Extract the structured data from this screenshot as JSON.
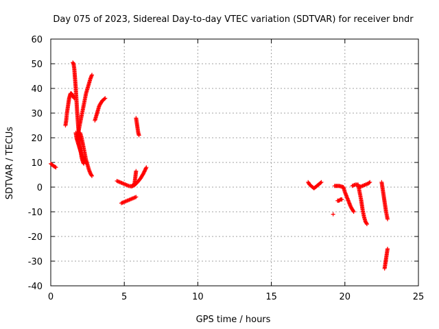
{
  "chart_data": {
    "type": "scatter",
    "title": "Day 075 of 2023, Sidereal Day-to-day VTEC variation (SDTVAR) for receiver bndr",
    "xlabel": "GPS time / hours",
    "ylabel": "SDTVAR / TECUs",
    "xlim": [
      0,
      25
    ],
    "ylim": [
      -40,
      60
    ],
    "xticks": [
      0,
      5,
      10,
      15,
      20,
      25
    ],
    "yticks": [
      -40,
      -30,
      -20,
      -10,
      0,
      10,
      20,
      30,
      40,
      50,
      60
    ],
    "grid": true,
    "legend": "none",
    "marker": "plus",
    "color": "#ff0000",
    "series": [
      {
        "x": [
          0.0,
          0.1,
          0.2,
          0.3,
          0.35
        ],
        "y": [
          9.5,
          9.0,
          8.5,
          8.2,
          8.0
        ]
      },
      {
        "x": [
          1.0,
          1.05,
          1.1,
          1.15,
          1.2,
          1.25,
          1.3,
          1.35,
          1.4,
          1.45,
          1.5,
          1.55,
          1.6
        ],
        "y": [
          25,
          27,
          30,
          32,
          34,
          36,
          37,
          38,
          38,
          37.5,
          37,
          36.5,
          36
        ]
      },
      {
        "x": [
          1.5,
          1.55,
          1.6,
          1.65,
          1.7,
          1.75,
          1.8,
          1.85,
          1.9,
          1.95,
          2.0,
          2.05,
          2.1,
          2.15,
          2.2,
          2.25
        ],
        "y": [
          50.5,
          50,
          48,
          44,
          40,
          35,
          30,
          26,
          22,
          19,
          16,
          14,
          12,
          11,
          10,
          9.5
        ]
      },
      {
        "x": [
          1.7,
          1.75,
          1.8,
          1.85,
          1.9,
          1.95,
          2.0,
          2.05,
          2.1,
          2.15,
          2.2,
          2.25,
          2.3,
          2.35,
          2.4
        ],
        "y": [
          22,
          20,
          19,
          18,
          17,
          16,
          15,
          14,
          13,
          12.5,
          12,
          11.5,
          11,
          10.5,
          10
        ]
      },
      {
        "x": [
          1.8,
          1.9,
          2.0,
          2.1,
          2.2,
          2.3,
          2.4,
          2.5,
          2.6,
          2.7,
          2.8
        ],
        "y": [
          20,
          23,
          26,
          29,
          32,
          35,
          38,
          40,
          42,
          44,
          45.5
        ]
      },
      {
        "x": [
          2.0,
          2.1,
          2.2,
          2.3,
          2.4,
          2.5,
          2.6,
          2.7,
          2.8
        ],
        "y": [
          22,
          20,
          17,
          14,
          11,
          9,
          7,
          5.5,
          4.5
        ]
      },
      {
        "x": [
          3.0,
          3.1,
          3.2,
          3.3,
          3.4,
          3.5,
          3.6,
          3.7
        ],
        "y": [
          27,
          29,
          31,
          33,
          34,
          35,
          35.5,
          36
        ]
      },
      {
        "x": [
          5.8,
          5.85,
          5.9,
          5.95,
          6.0
        ],
        "y": [
          28,
          26,
          24,
          22,
          21
        ]
      },
      {
        "x": [
          4.5,
          4.7,
          4.9,
          5.1,
          5.3,
          5.5,
          5.7,
          5.8
        ],
        "y": [
          2.5,
          2.0,
          1.5,
          1.0,
          0.5,
          0.3,
          1.5,
          6.5
        ]
      },
      {
        "x": [
          5.5,
          5.7,
          5.9,
          6.1,
          6.3,
          6.5
        ],
        "y": [
          0.3,
          0.8,
          2.0,
          3.5,
          5.5,
          8.0
        ]
      },
      {
        "x": [
          4.8,
          5.0,
          5.2,
          5.4,
          5.6,
          5.8
        ],
        "y": [
          -6.5,
          -6.0,
          -5.5,
          -5.0,
          -4.5,
          -4.0
        ]
      },
      {
        "x": [
          17.5,
          17.6,
          17.7,
          17.8,
          17.9,
          18.0,
          18.1,
          18.2,
          18.3,
          18.4
        ],
        "y": [
          2.0,
          1.0,
          0.5,
          0.0,
          -0.5,
          0.0,
          0.5,
          1.0,
          1.5,
          2.0
        ]
      },
      {
        "x": [
          19.2
        ],
        "y": [
          -11
        ]
      },
      {
        "x": [
          19.5,
          19.6,
          19.7,
          19.8
        ],
        "y": [
          -5.5,
          -5.5,
          -5.0,
          -5.0
        ]
      },
      {
        "x": [
          19.3,
          19.6,
          19.9,
          20.0,
          20.2,
          20.4,
          20.6
        ],
        "y": [
          0.5,
          0.5,
          0.0,
          -2.0,
          -5.0,
          -8.0,
          -10.0
        ]
      },
      {
        "x": [
          20.5,
          20.7,
          20.9,
          21.0,
          21.1,
          21.2,
          21.3,
          21.4,
          21.5
        ],
        "y": [
          0.5,
          1.0,
          1.0,
          -2.0,
          -5.0,
          -9.0,
          -12.0,
          -14.0,
          -15.0
        ]
      },
      {
        "x": [
          21.0,
          21.2,
          21.4,
          21.6,
          21.7
        ],
        "y": [
          0.0,
          0.5,
          1.0,
          1.5,
          2.0
        ]
      },
      {
        "x": [
          22.5,
          22.6,
          22.7,
          22.8,
          22.9
        ],
        "y": [
          2.0,
          -2.0,
          -6.0,
          -10.0,
          -13.0
        ]
      },
      {
        "x": [
          22.7,
          22.75,
          22.8,
          22.85,
          22.9
        ],
        "y": [
          -33,
          -31,
          -29,
          -27,
          -25
        ]
      }
    ]
  }
}
